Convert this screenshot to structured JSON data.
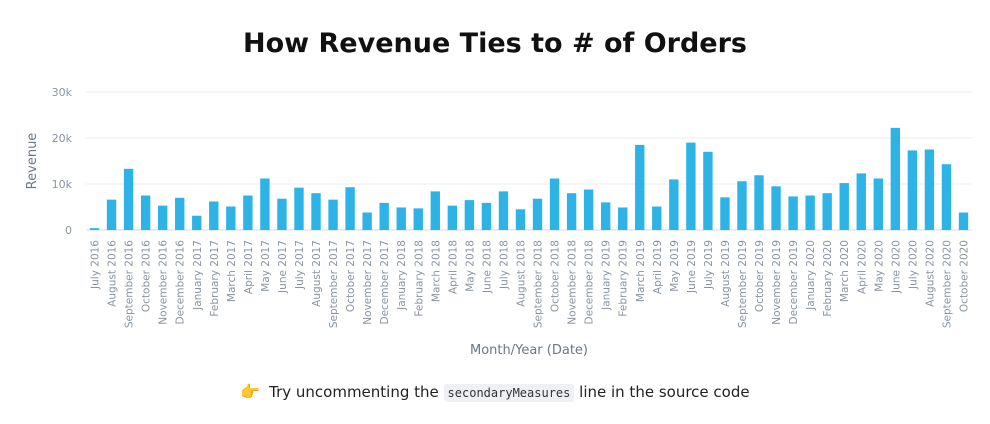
{
  "title": "How Revenue Ties to # of Orders",
  "chart_data": {
    "type": "bar",
    "title": "How Revenue Ties to # of Orders",
    "xlabel": "Month/Year (Date)",
    "ylabel": "Revenue",
    "ylim": [
      0,
      30000
    ],
    "yticks": [
      0,
      10000,
      20000,
      30000
    ],
    "ytick_labels": [
      "0",
      "10k",
      "20k",
      "30k"
    ],
    "grid": true,
    "bar_color": "#2db3e5",
    "categories": [
      "July 2016",
      "August 2016",
      "September 2016",
      "October 2016",
      "November 2016",
      "December 2016",
      "January 2017",
      "February 2017",
      "March 2017",
      "April 2017",
      "May 2017",
      "June 2017",
      "July 2017",
      "August 2017",
      "September 2017",
      "October 2017",
      "November 2017",
      "December 2017",
      "January 2018",
      "February 2018",
      "March 2018",
      "April 2018",
      "May 2018",
      "June 2018",
      "July 2018",
      "August 2018",
      "September 2018",
      "October 2018",
      "November 2018",
      "December 2018",
      "January 2019",
      "February 2019",
      "March 2019",
      "April 2019",
      "May 2019",
      "June 2019",
      "July 2019",
      "August 2019",
      "September 2019",
      "October 2019",
      "November 2019",
      "December 2019",
      "January 2020",
      "February 2020",
      "March 2020",
      "April 2020",
      "May 2020",
      "June 2020",
      "July 2020",
      "August 2020",
      "September 2020",
      "October 2020"
    ],
    "values": [
      400,
      6600,
      13300,
      7500,
      5300,
      7000,
      3100,
      6200,
      5100,
      7500,
      11200,
      6800,
      9200,
      8000,
      6600,
      9300,
      3800,
      5900,
      4900,
      4700,
      8400,
      5300,
      6500,
      5900,
      8400,
      4500,
      6800,
      11200,
      8000,
      8800,
      6000,
      4900,
      18500,
      5100,
      11000,
      19000,
      17000,
      7100,
      10600,
      11900,
      9500,
      7300,
      7500,
      8000,
      10200,
      12300,
      11200,
      22200,
      17300,
      17500,
      14300,
      3800
    ]
  },
  "hint": {
    "emoji": "👉",
    "prefix": "Try uncommenting the",
    "code": "secondaryMeasures",
    "suffix": "line in the source code"
  }
}
